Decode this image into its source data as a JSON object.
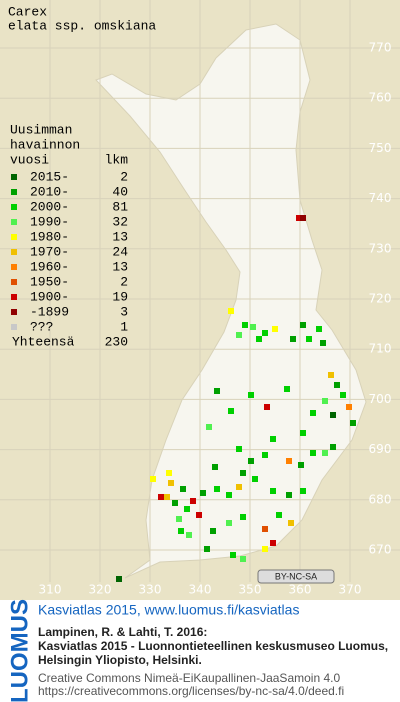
{
  "title": [
    "Carex",
    "elata ssp. omskiana"
  ],
  "legend": {
    "heading": [
      "Uusimman",
      "havainnon",
      "vuosi"
    ],
    "count_heading": "lkm",
    "entries": [
      {
        "label": "2015-",
        "count": 2,
        "color": "#006400"
      },
      {
        "label": "2010-",
        "count": 40,
        "color": "#00a000"
      },
      {
        "label": "2000-",
        "count": 81,
        "color": "#00d000"
      },
      {
        "label": "1990-",
        "count": 32,
        "color": "#50f050"
      },
      {
        "label": "1980-",
        "count": 13,
        "color": "#ffff00"
      },
      {
        "label": "1970-",
        "count": 24,
        "color": "#f0c000"
      },
      {
        "label": "1960-",
        "count": 13,
        "color": "#ff8000"
      },
      {
        "label": "1950-",
        "count": 2,
        "color": "#e05000"
      },
      {
        "label": "1900-",
        "count": 19,
        "color": "#cc0000"
      },
      {
        "label": "-1899",
        "count": 3,
        "color": "#900000"
      },
      {
        "label": "???",
        "count": 1,
        "color": "#c8c8c8"
      }
    ],
    "total_label": "Yhteensä",
    "total": 230
  },
  "grid": {
    "yticks": [
      670,
      680,
      690,
      700,
      710,
      720,
      730,
      740,
      750,
      760,
      770
    ],
    "xticks": [
      310,
      320,
      330,
      340,
      350,
      360,
      370
    ]
  },
  "license_badge": "BY-NC-SA",
  "footer": {
    "brand": "LUOMUS",
    "heading": "Kasviatlas 2015, www.luomus.fi/kasviatlas",
    "citation": [
      "Lampinen, R. & Lahti, T. 2016:",
      "Kasviatlas 2015 - Luonnontieteellinen keskusmuseo Luomus,",
      "Helsingin Yliopisto, Helsinki."
    ],
    "license": [
      "Creative Commons Nimeä-EiKaupallinen-JaaSamoin 4.0",
      "https://creativecommons.org/licenses/by-nc-sa/4.0/deed.fi"
    ]
  }
}
